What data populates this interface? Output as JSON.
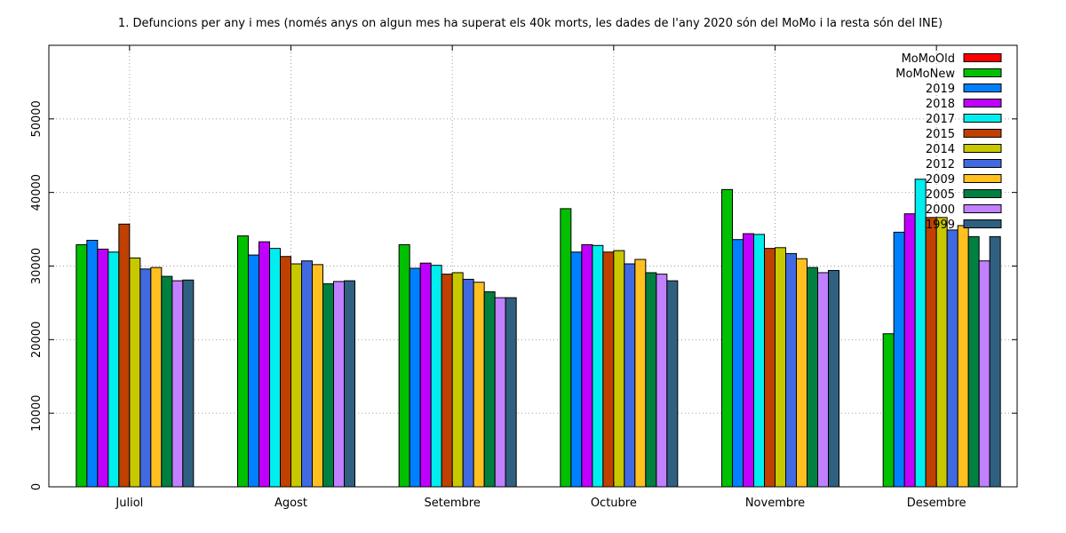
{
  "chart_data": {
    "type": "bar",
    "title": "1. Defuncions per any i mes (només anys on algun mes ha superat els 40k morts, les dades de l'any 2020 són del MoMo i la resta són del INE)",
    "categories": [
      "Juliol",
      "Agost",
      "Setembre",
      "Octubre",
      "Novembre",
      "Desembre"
    ],
    "ylim": [
      0,
      60000
    ],
    "yticks": [
      0,
      10000,
      20000,
      30000,
      40000,
      50000
    ],
    "grid": true,
    "legend_position": "top-right",
    "series": [
      {
        "name": "MoMoOld",
        "color": "#ff0000",
        "values": [
          null,
          null,
          null,
          null,
          null,
          null
        ]
      },
      {
        "name": "MoMoNew",
        "color": "#00c000",
        "values": [
          32900,
          34100,
          32900,
          37800,
          40400,
          20800
        ]
      },
      {
        "name": "2019",
        "color": "#0080ff",
        "values": [
          33500,
          31500,
          29700,
          31900,
          33600,
          34600
        ]
      },
      {
        "name": "2018",
        "color": "#c000ff",
        "values": [
          32300,
          33300,
          30400,
          32900,
          34400,
          37100
        ]
      },
      {
        "name": "2017",
        "color": "#00eeee",
        "values": [
          31900,
          32400,
          30100,
          32800,
          34300,
          41800
        ]
      },
      {
        "name": "2015",
        "color": "#c04000",
        "values": [
          35700,
          31300,
          28900,
          31900,
          32400,
          36600
        ]
      },
      {
        "name": "2014",
        "color": "#c8c800",
        "values": [
          31100,
          30300,
          29100,
          32100,
          32500,
          36600
        ]
      },
      {
        "name": "2012",
        "color": "#4169e1",
        "values": [
          29600,
          30700,
          28200,
          30300,
          31700,
          34900
        ]
      },
      {
        "name": "2009",
        "color": "#ffc020",
        "values": [
          29800,
          30200,
          27800,
          30900,
          31000,
          35500
        ]
      },
      {
        "name": "2005",
        "color": "#008040",
        "values": [
          28600,
          27600,
          26500,
          29100,
          29800,
          34000
        ]
      },
      {
        "name": "2000",
        "color": "#c080ff",
        "values": [
          28000,
          27900,
          25700,
          28900,
          29100,
          30700
        ]
      },
      {
        "name": "1999",
        "color": "#306080",
        "values": [
          28100,
          28000,
          25700,
          28000,
          29400,
          34000
        ]
      }
    ]
  }
}
